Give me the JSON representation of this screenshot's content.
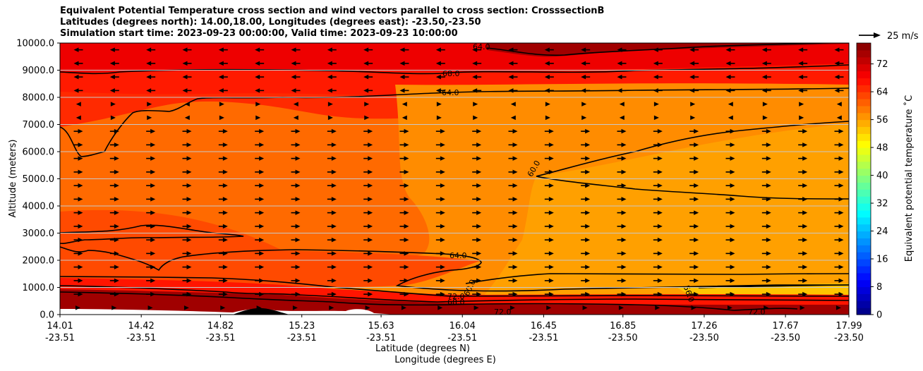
{
  "titles": {
    "line1": "Equivalent Potential Temperature cross section and wind vectors parallel to cross section: CrosssectionB",
    "line2": "Latitudes (degrees north): 14.00,18.00, Longitudes (degrees east): -23.50,-23.50",
    "line3": "Simulation start time: 2023-09-23 00:00:00, Valid time: 2023-09-23 10:00:00"
  },
  "quiver_key": {
    "label": "25 m/s",
    "color": "#000000"
  },
  "chart_data": {
    "type": "heatmap",
    "subtype": "filled contour cross section with wind vectors",
    "xlabel": "Latitude (degrees N)",
    "xlabel2": "Longitude (degrees E)",
    "ylabel": "Altitude (meters)",
    "ylim": [
      0,
      10000
    ],
    "yticks": [
      0,
      1000,
      2000,
      3000,
      4000,
      5000,
      6000,
      7000,
      8000,
      9000,
      10000
    ],
    "ytick_labels": [
      "0.0",
      "1000.0",
      "2000.0",
      "3000.0",
      "4000.0",
      "5000.0",
      "6000.0",
      "7000.0",
      "8000.0",
      "9000.0",
      "10000.0"
    ],
    "x_range": [
      14.01,
      17.99
    ],
    "xticks": [
      {
        "lat": "14.01",
        "lon": "-23.51",
        "value": 14.01
      },
      {
        "lat": "14.42",
        "lon": "-23.51",
        "value": 14.42
      },
      {
        "lat": "14.82",
        "lon": "-23.51",
        "value": 14.82
      },
      {
        "lat": "15.23",
        "lon": "-23.51",
        "value": 15.23
      },
      {
        "lat": "15.63",
        "lon": "-23.51",
        "value": 15.63
      },
      {
        "lat": "16.04",
        "lon": "-23.51",
        "value": 16.04
      },
      {
        "lat": "16.45",
        "lon": "-23.51",
        "value": 16.45
      },
      {
        "lat": "16.85",
        "lon": "-23.50",
        "value": 16.85
      },
      {
        "lat": "17.26",
        "lon": "-23.50",
        "value": 17.26
      },
      {
        "lat": "17.67",
        "lon": "-23.50",
        "value": 17.67
      },
      {
        "lat": "17.99",
        "lon": "-23.50",
        "value": 17.99
      }
    ],
    "grid": "horizontal lines at y ticks",
    "colorbar": {
      "label": "Equivalent potential temperature ˚C",
      "min": 0,
      "max": 78,
      "step": 2,
      "ticks": [
        "0",
        "8",
        "16",
        "24",
        "32",
        "40",
        "48",
        "56",
        "64",
        "72"
      ],
      "colormap": "jet"
    },
    "contour_labels": [
      "64.0",
      "68.0",
      "72.0",
      "64.0",
      "60.0",
      "56.0",
      "64.0",
      "60.0",
      "68.0",
      "72.0",
      "56.0",
      "72.0"
    ],
    "wind_field": "mostly eastward (positive) arrows below 7000 m, westward arrows above 8000 m"
  }
}
